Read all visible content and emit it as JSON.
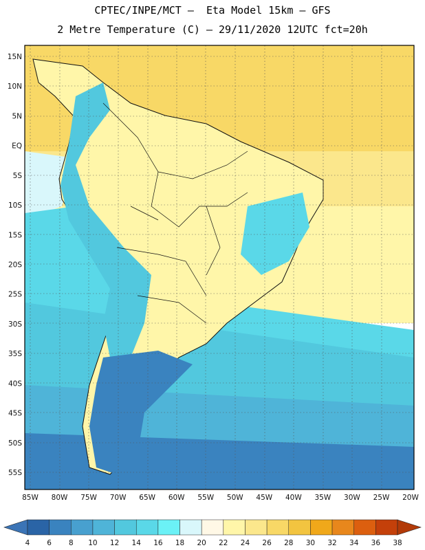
{
  "title_line1": "CPTEC/INPE/MCT –  Eta Model 15km – GFS",
  "title_line2": "2 Metre Temperature (C) – 29/11/2020 12UTC fct=20h",
  "lat_labels": [
    "15N",
    "10N",
    "5N",
    "EQ",
    "5S",
    "10S",
    "15S",
    "20S",
    "25S",
    "30S",
    "35S",
    "40S",
    "45S",
    "50S",
    "55S"
  ],
  "lat_values": [
    15,
    10,
    5,
    0,
    -5,
    -10,
    -15,
    -20,
    -25,
    -30,
    -35,
    -40,
    -45,
    -50,
    -55
  ],
  "lon_labels": [
    "85W",
    "80W",
    "75W",
    "70W",
    "65W",
    "60W",
    "55W",
    "50W",
    "45W",
    "40W",
    "35W",
    "30W",
    "25W",
    "20W"
  ],
  "lon_values": [
    -85,
    -80,
    -75,
    -70,
    -65,
    -60,
    -55,
    -50,
    -45,
    -40,
    -35,
    -30,
    -25,
    -20
  ],
  "colorbar": {
    "labels": [
      "4",
      "6",
      "8",
      "10",
      "12",
      "14",
      "16",
      "18",
      "20",
      "22",
      "24",
      "26",
      "28",
      "30",
      "32",
      "34",
      "36",
      "38"
    ],
    "colors": [
      "#2a64a6",
      "#3a83bf",
      "#48a0cf",
      "#4fb4d8",
      "#52c8de",
      "#5ad8e8",
      "#6bf1f6",
      "#d9f7fb",
      "#fff8e6",
      "#fff6a9",
      "#fbe78c",
      "#f8d866",
      "#f2c440",
      "#f0a81a",
      "#e8871c",
      "#dc5f0f",
      "#c4400a"
    ],
    "low_color": "#3b74b6",
    "high_color": "#b23a08"
  },
  "regions": [
    {
      "name": "ocean-north",
      "color": "#f8d866"
    },
    {
      "name": "ocean-warm",
      "color": "#fbe78c"
    },
    {
      "name": "ocean-subtropical",
      "color": "#fff6a9"
    },
    {
      "name": "ocean-pacific-tropical",
      "color": "#d9f7fb"
    },
    {
      "name": "ocean-cool",
      "color": "#5ad8e8"
    },
    {
      "name": "ocean-mid",
      "color": "#52c8de"
    },
    {
      "name": "ocean-cold",
      "color": "#4fb4d8"
    },
    {
      "name": "ocean-far-south",
      "color": "#3a83bf"
    },
    {
      "name": "land-warm",
      "color": "#fff6a9"
    },
    {
      "name": "land-andes",
      "color": "#52c8de"
    },
    {
      "name": "land-patagonia",
      "color": "#3a83bf"
    }
  ]
}
